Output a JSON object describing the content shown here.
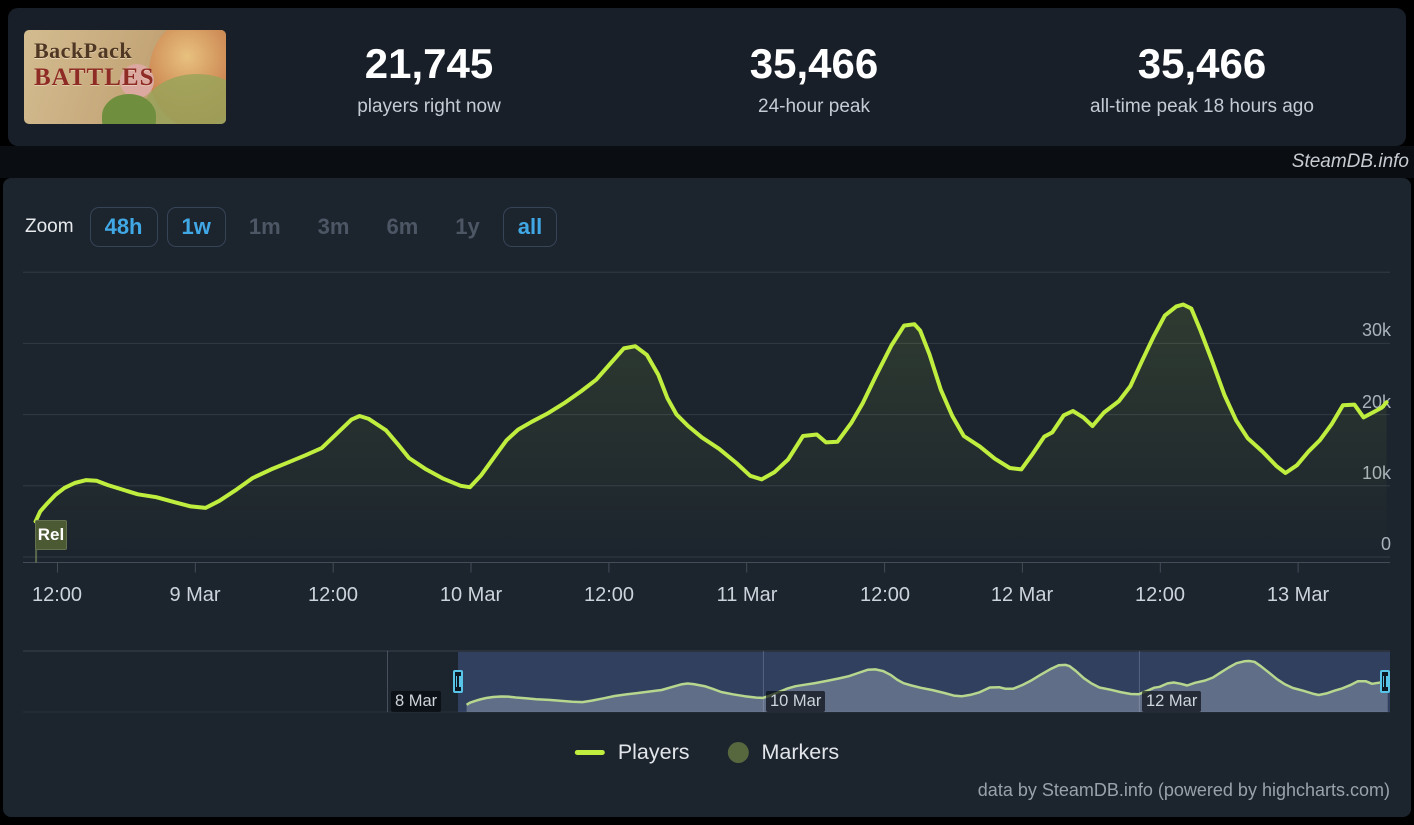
{
  "header": {
    "game_title": "Backpack Battles",
    "banner": {
      "line1": "BackPack",
      "line2": "BATTLES"
    },
    "stats": [
      {
        "value": "21,745",
        "label": "players right now"
      },
      {
        "value": "35,466",
        "label": "24-hour peak"
      },
      {
        "value": "35,466",
        "label": "all-time peak 18 hours ago"
      }
    ]
  },
  "brand_bar": {
    "text": "SteamDB.info"
  },
  "toolbar": {
    "zoom_label": "Zoom",
    "buttons": [
      {
        "label": "48h",
        "state": "active"
      },
      {
        "label": "1w",
        "state": "active"
      },
      {
        "label": "1m",
        "state": "disabled"
      },
      {
        "label": "3m",
        "state": "disabled"
      },
      {
        "label": "6m",
        "state": "disabled"
      },
      {
        "label": "1y",
        "state": "disabled"
      },
      {
        "label": "all",
        "state": "active"
      }
    ]
  },
  "colors": {
    "line_green": "#bfee3f",
    "marker_olive": "#57683f",
    "accent_blue": "#41a8e6",
    "nav_line": "#b7d78f",
    "nav_selection": "rgba(100,130,210,0.30)"
  },
  "chart_data": {
    "type": "line",
    "title": "Backpack Battles concurrent players",
    "xlabel": "",
    "ylabel": "",
    "x_unit": "hours since 8 Mar 00:00",
    "x_visible_range": [
      9,
      128
    ],
    "ylim": [
      0,
      41000
    ],
    "grid": "horizontal",
    "legend_position": "bottom-center",
    "series": [
      {
        "name": "Players",
        "color": "#bfee3f",
        "points": [
          [
            10.1,
            5000
          ],
          [
            10.5,
            6400
          ],
          [
            11.1,
            7500
          ],
          [
            11.8,
            8700
          ],
          [
            12.6,
            9700
          ],
          [
            13.5,
            10400
          ],
          [
            14.5,
            10800
          ],
          [
            15.4,
            10700
          ],
          [
            16.4,
            10100
          ],
          [
            17.6,
            9500
          ],
          [
            19,
            8800
          ],
          [
            20.6,
            8400
          ],
          [
            22.2,
            7700
          ],
          [
            23.6,
            7100
          ],
          [
            24.9,
            6900
          ],
          [
            26.1,
            7900
          ],
          [
            27.6,
            9500
          ],
          [
            29,
            11100
          ],
          [
            30.6,
            12300
          ],
          [
            32.1,
            13300
          ],
          [
            33.6,
            14300
          ],
          [
            35,
            15300
          ],
          [
            36.3,
            17300
          ],
          [
            37.6,
            19300
          ],
          [
            38.3,
            19800
          ],
          [
            39.1,
            19400
          ],
          [
            40.6,
            17800
          ],
          [
            41.6,
            15900
          ],
          [
            42.6,
            13900
          ],
          [
            44.1,
            12300
          ],
          [
            45.6,
            11000
          ],
          [
            47.1,
            10000
          ],
          [
            47.9,
            9800
          ],
          [
            48.9,
            11500
          ],
          [
            50.1,
            14200
          ],
          [
            51.1,
            16400
          ],
          [
            52.1,
            17900
          ],
          [
            53.3,
            19000
          ],
          [
            54.6,
            20100
          ],
          [
            56.1,
            21600
          ],
          [
            57.6,
            23300
          ],
          [
            58.9,
            24900
          ],
          [
            60.1,
            27100
          ],
          [
            61.3,
            29300
          ],
          [
            62.3,
            29600
          ],
          [
            63.3,
            28400
          ],
          [
            64.3,
            25600
          ],
          [
            65.1,
            22300
          ],
          [
            65.9,
            20000
          ],
          [
            66.9,
            18400
          ],
          [
            68.1,
            16800
          ],
          [
            69.6,
            15200
          ],
          [
            71.1,
            13200
          ],
          [
            72.3,
            11400
          ],
          [
            73.3,
            10900
          ],
          [
            74.4,
            11900
          ],
          [
            75.6,
            13700
          ],
          [
            76.9,
            17000
          ],
          [
            78.1,
            17200
          ],
          [
            78.9,
            16100
          ],
          [
            79.9,
            16200
          ],
          [
            81.1,
            18800
          ],
          [
            82.1,
            21600
          ],
          [
            83.3,
            25600
          ],
          [
            84.6,
            29700
          ],
          [
            85.7,
            32500
          ],
          [
            86.6,
            32700
          ],
          [
            87.1,
            31800
          ],
          [
            87.9,
            28500
          ],
          [
            88.9,
            23500
          ],
          [
            89.9,
            19800
          ],
          [
            90.9,
            17000
          ],
          [
            92.3,
            15500
          ],
          [
            93.6,
            13800
          ],
          [
            94.9,
            12500
          ],
          [
            95.9,
            12300
          ],
          [
            96.9,
            14500
          ],
          [
            97.9,
            16900
          ],
          [
            98.6,
            17500
          ],
          [
            99.6,
            19900
          ],
          [
            100.4,
            20500
          ],
          [
            101.3,
            19600
          ],
          [
            102.1,
            18400
          ],
          [
            103.1,
            20300
          ],
          [
            104.4,
            21900
          ],
          [
            105.4,
            24000
          ],
          [
            106.4,
            27500
          ],
          [
            107.4,
            30900
          ],
          [
            108.4,
            33900
          ],
          [
            109.4,
            35200
          ],
          [
            110,
            35466
          ],
          [
            110.7,
            34900
          ],
          [
            111.5,
            31800
          ],
          [
            112.5,
            27600
          ],
          [
            113.6,
            22700
          ],
          [
            114.6,
            19200
          ],
          [
            115.6,
            16700
          ],
          [
            116.9,
            14800
          ],
          [
            118.1,
            12800
          ],
          [
            118.9,
            11800
          ],
          [
            119.9,
            12900
          ],
          [
            120.9,
            14800
          ],
          [
            121.9,
            16400
          ],
          [
            122.9,
            18600
          ],
          [
            123.9,
            21300
          ],
          [
            124.9,
            21400
          ],
          [
            125.7,
            19600
          ],
          [
            126.5,
            20300
          ],
          [
            127.3,
            21000
          ],
          [
            127.7,
            21745
          ]
        ]
      }
    ],
    "markers": [
      {
        "label": "Rel",
        "t": 10.1,
        "value": 5000
      }
    ],
    "x_axis_ticks": [
      {
        "t": 12,
        "label": "12:00"
      },
      {
        "t": 24,
        "label": "9 Mar"
      },
      {
        "t": 36,
        "label": "12:00"
      },
      {
        "t": 48,
        "label": "10 Mar"
      },
      {
        "t": 60,
        "label": "12:00"
      },
      {
        "t": 72,
        "label": "11 Mar"
      },
      {
        "t": 84,
        "label": "12:00"
      },
      {
        "t": 96,
        "label": "12 Mar"
      },
      {
        "t": 108,
        "label": "12:00"
      },
      {
        "t": 120,
        "label": "13 Mar"
      }
    ],
    "y_axis_ticks": [
      {
        "value": 0,
        "label": "0"
      },
      {
        "value": 10000,
        "label": "10k"
      },
      {
        "value": 20000,
        "label": "20k"
      },
      {
        "value": 30000,
        "label": "30k"
      }
    ],
    "navigator": {
      "visible_range": [
        -46.5,
        128
      ],
      "selected_range": [
        9,
        128
      ],
      "ticks": [
        {
          "t": 0,
          "label": "8 Mar"
        },
        {
          "t": 48,
          "label": "10 Mar"
        },
        {
          "t": 96,
          "label": "12 Mar"
        }
      ]
    },
    "legend": [
      {
        "label": "Players",
        "swatch": "line",
        "color": "#bfee3f"
      },
      {
        "label": "Markers",
        "swatch": "circle",
        "color": "#57683f"
      }
    ]
  },
  "footer": {
    "credit": "data by SteamDB.info (powered by highcharts.com)"
  }
}
